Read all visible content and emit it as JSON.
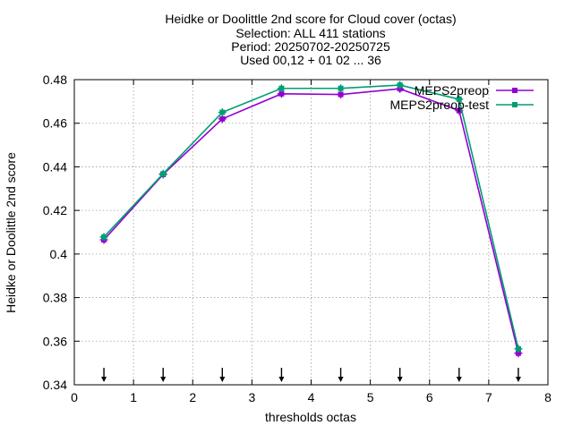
{
  "chart_data": {
    "type": "line",
    "title": [
      "Heidke or Doolittle 2nd score  for Cloud cover (octas)",
      "Selection: ALL    411 stations",
      "Period: 20250702-20250725",
      "Used 00,12 + 01 02 ... 36"
    ],
    "xlabel": "thresholds octas",
    "ylabel": "Heidke or Doolittle 2nd score",
    "xlim": [
      0,
      8
    ],
    "ylim": [
      0.34,
      0.48
    ],
    "xticks": [
      0,
      1,
      2,
      3,
      4,
      5,
      6,
      7,
      8
    ],
    "xtick_labels": [
      "0",
      "1",
      "2",
      "3",
      "4",
      "5",
      "6",
      "7",
      "8"
    ],
    "yticks": [
      0.34,
      0.36,
      0.38,
      0.4,
      0.42,
      0.44,
      0.46,
      0.48
    ],
    "ytick_labels": [
      "0.34",
      "0.36",
      "0.38",
      "0.4",
      "0.42",
      "0.44",
      "0.46",
      "0.48"
    ],
    "grid": true,
    "legend_position": "top-right",
    "x": [
      0.5,
      1.5,
      2.5,
      3.5,
      4.5,
      5.5,
      6.5,
      7.5
    ],
    "series": [
      {
        "name": "MEPS2preop",
        "color": "#9400d3",
        "values": [
          0.4065,
          0.4365,
          0.462,
          0.4735,
          0.4732,
          0.4758,
          0.4658,
          0.3545
        ]
      },
      {
        "name": "MEPS2preop-test",
        "color": "#009e73",
        "values": [
          0.4078,
          0.4368,
          0.465,
          0.476,
          0.476,
          0.4775,
          0.471,
          0.3565
        ]
      }
    ],
    "arrow_markers_x": [
      0.5,
      1.5,
      2.5,
      3.5,
      4.5,
      5.5,
      6.5,
      7.5
    ]
  }
}
